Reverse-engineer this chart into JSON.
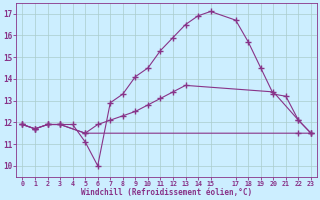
{
  "xlabel": "Windchill (Refroidissement éolien,°C)",
  "background_color": "#cceeff",
  "grid_color": "#aacccc",
  "line_color": "#883388",
  "xlim": [
    -0.5,
    23.5
  ],
  "ylim": [
    9.5,
    17.5
  ],
  "yticks": [
    10,
    11,
    12,
    13,
    14,
    15,
    16,
    17
  ],
  "xticks": [
    0,
    1,
    2,
    3,
    4,
    5,
    6,
    7,
    8,
    9,
    10,
    11,
    12,
    13,
    14,
    15,
    17,
    18,
    19,
    20,
    21,
    22,
    23
  ],
  "line1_x": [
    0,
    1,
    2,
    3,
    5,
    22,
    23
  ],
  "line1_y": [
    11.9,
    11.7,
    11.9,
    11.9,
    11.5,
    11.5,
    11.5
  ],
  "line2_x": [
    0,
    1,
    2,
    3,
    5,
    6,
    7,
    8,
    9,
    10,
    11,
    12,
    13,
    20,
    22,
    23
  ],
  "line2_y": [
    11.9,
    11.7,
    11.9,
    11.9,
    11.5,
    11.9,
    12.1,
    12.3,
    12.5,
    12.8,
    13.1,
    13.4,
    13.7,
    13.4,
    12.1,
    11.5
  ],
  "line3_x": [
    0,
    1,
    2,
    3,
    4,
    5,
    6,
    7,
    8,
    9,
    10,
    11,
    12,
    13,
    14,
    15,
    17,
    18,
    19,
    20,
    21,
    22,
    23
  ],
  "line3_y": [
    11.9,
    11.7,
    11.9,
    11.9,
    11.9,
    11.1,
    10.0,
    12.9,
    13.3,
    14.1,
    14.5,
    15.3,
    15.9,
    16.5,
    16.9,
    17.1,
    16.7,
    15.7,
    14.5,
    13.3,
    13.2,
    12.1,
    11.5
  ]
}
